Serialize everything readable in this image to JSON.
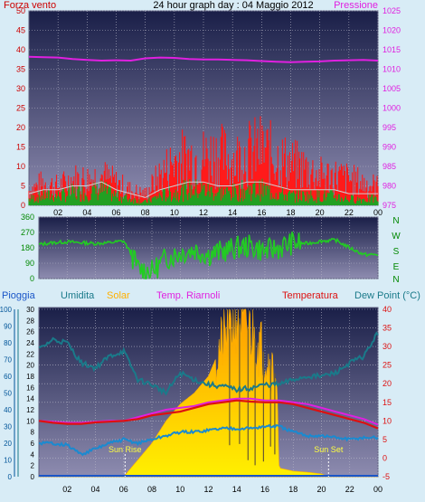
{
  "title": "24 hour graph day : 04 Maggio 2012",
  "colors": {
    "background": "#d8ecf6",
    "panel_top": "#1a1f48",
    "panel_bottom": "#8e8cb0",
    "grid": "#b8b8c8",
    "wind_gust": "#ff1a1a",
    "wind_avg": "#22a022",
    "pressure": "#e020e0",
    "direction": "#22cc22",
    "rain": "#1a56c8",
    "humidity": "#1a7a8a",
    "solar": "#ffb000",
    "solar_fill_bottom": "#fff000",
    "temp_riarnoli": "#e020e0",
    "temperature": "#dd1010",
    "dew_point": "#1a8ad0",
    "left_axis_red": "#cc0000",
    "left_axis_green": "#008800",
    "left_axis_blue": "#005599"
  },
  "chart_data": [
    {
      "id": "wind-pressure",
      "type": "line",
      "left_label": "Forza vento",
      "right_label": "Pressione",
      "x_ticks": [
        "02",
        "04",
        "06",
        "08",
        "10",
        "12",
        "14",
        "16",
        "18",
        "20",
        "22",
        "00"
      ],
      "x_range": [
        0,
        24
      ],
      "left_ticks": [
        "50",
        "45",
        "40",
        "35",
        "30",
        "25",
        "20",
        "15",
        "10",
        "5",
        "0"
      ],
      "ylim_left": [
        0,
        50
      ],
      "right_ticks": [
        "1025",
        "1020",
        "1015",
        "1010",
        "1005",
        "1000",
        "995",
        "990",
        "985",
        "980",
        "975"
      ],
      "ylim_right": [
        975,
        1025
      ],
      "grid": true,
      "series": [
        {
          "name": "Pressione",
          "x": [
            0,
            1,
            2,
            3,
            4,
            5,
            6,
            7,
            8,
            9,
            10,
            11,
            12,
            13,
            14,
            15,
            16,
            17,
            18,
            19,
            20,
            21,
            22,
            23,
            24
          ],
          "values": [
            1013.2,
            1013.1,
            1013.0,
            1012.6,
            1012.4,
            1012.2,
            1012.3,
            1012.2,
            1012.8,
            1013.0,
            1012.9,
            1012.6,
            1012.5,
            1012.5,
            1012.4,
            1012.3,
            1012.1,
            1011.9,
            1011.8,
            1011.9,
            1012.0,
            1012.2,
            1012.3,
            1012.4,
            1012.2
          ]
        },
        {
          "name": "wind_gust",
          "x": [
            0,
            1,
            2,
            3,
            4,
            5,
            6,
            7,
            8,
            9,
            10,
            11,
            12,
            13,
            14,
            15,
            16,
            17,
            18,
            19,
            20,
            21,
            22,
            23,
            24
          ],
          "values": [
            4,
            6,
            5,
            7,
            7,
            8,
            6,
            4,
            3,
            8,
            12,
            13,
            13,
            14,
            12,
            14,
            15,
            13,
            11,
            10,
            8,
            8,
            7,
            6,
            5
          ]
        },
        {
          "name": "wind_avg",
          "x": [
            0,
            1,
            2,
            3,
            4,
            5,
            6,
            7,
            8,
            9,
            10,
            11,
            12,
            13,
            14,
            15,
            16,
            17,
            18,
            19,
            20,
            21,
            22,
            23,
            24
          ],
          "values": [
            2,
            3,
            3,
            4,
            4,
            5,
            3,
            2,
            1,
            3,
            4,
            5,
            5,
            4,
            4,
            5,
            5,
            4,
            3,
            3,
            3,
            3,
            2,
            2,
            2
          ]
        }
      ]
    },
    {
      "id": "wind-direction",
      "type": "line",
      "left_ticks": [
        "360",
        "270",
        "180",
        "90",
        "0"
      ],
      "ylim": [
        0,
        360
      ],
      "right_ticks": [
        "N",
        "W",
        "S",
        "E",
        "N"
      ],
      "grid": true,
      "series": [
        {
          "name": "direction",
          "x": [
            0,
            1,
            2,
            3,
            4,
            5,
            6,
            6.5,
            7,
            8,
            9,
            10,
            11,
            12,
            13,
            14,
            15,
            16,
            17,
            18,
            19,
            20,
            21,
            22,
            23,
            24
          ],
          "values": [
            200,
            210,
            215,
            210,
            205,
            210,
            220,
            150,
            60,
            40,
            120,
            150,
            170,
            140,
            160,
            180,
            190,
            160,
            180,
            210,
            205,
            220,
            225,
            180,
            140,
            140
          ]
        }
      ]
    },
    {
      "id": "temp-humidity-solar",
      "type": "line",
      "legend": [
        "Pioggia",
        "Umidita",
        "Solar",
        "Temp. Riarnoli",
        "Temperatura",
        "Dew Point (°C)"
      ],
      "x_ticks": [
        "02",
        "04",
        "06",
        "08",
        "10",
        "12",
        "14",
        "16",
        "18",
        "20",
        "22",
        "00"
      ],
      "x_range": [
        0,
        24
      ],
      "rain_ticks": [
        "100",
        "90",
        "80",
        "70",
        "60",
        "50",
        "40",
        "30",
        "20",
        "10",
        "0"
      ],
      "humidity_ticks": [
        "30",
        "28",
        "26",
        "24",
        "22",
        "20",
        "18",
        "16",
        "14",
        "12",
        "10",
        "8",
        "6",
        "4",
        "2",
        "0"
      ],
      "temp_ticks": [
        "40",
        "35",
        "30",
        "25",
        "20",
        "15",
        "10",
        "5",
        "0",
        "-5"
      ],
      "ylim_temp": [
        -5,
        40
      ],
      "ylim_humidity": [
        0,
        100
      ],
      "ylim_solar": [
        0,
        30
      ],
      "annotations": [
        "Sun Rise",
        "Sun Set"
      ],
      "sunrise_x": 6.1,
      "sunset_x": 20.5,
      "grid": true,
      "series": [
        {
          "name": "Umidita",
          "x": [
            0,
            1,
            2,
            3,
            4,
            5,
            6,
            7,
            8,
            9,
            10,
            11,
            12,
            13,
            14,
            15,
            16,
            17,
            18,
            19,
            20,
            21,
            22,
            23,
            24
          ],
          "values": [
            76,
            82,
            80,
            68,
            65,
            72,
            75,
            58,
            55,
            50,
            62,
            58,
            55,
            54,
            52,
            53,
            55,
            55,
            58,
            60,
            60,
            62,
            68,
            72,
            86
          ]
        },
        {
          "name": "Solar",
          "x": [
            0,
            6,
            7,
            8,
            9,
            10,
            11,
            12,
            13,
            14,
            15,
            16,
            16.8,
            17,
            17.1,
            18,
            19,
            20,
            20.5,
            24
          ],
          "values": [
            0,
            0,
            3,
            6,
            10,
            13,
            15,
            18,
            24,
            29,
            26,
            22,
            18,
            2,
            1.5,
            1,
            0.8,
            0.5,
            0,
            0
          ]
        },
        {
          "name": "Temp. Riarnoli",
          "x": [
            0,
            1,
            2,
            3,
            4,
            5,
            6,
            7,
            8,
            9,
            10,
            11,
            12,
            13,
            14,
            15,
            16,
            17,
            18,
            19,
            20,
            21,
            22,
            23,
            24
          ],
          "values": [
            10,
            9.8,
            9.5,
            9.5,
            9.8,
            10,
            10,
            11,
            12,
            13,
            13.5,
            14,
            15,
            15.5,
            16,
            16,
            15.5,
            15.5,
            15,
            14.5,
            13.5,
            12.5,
            11.5,
            10.5,
            9
          ]
        },
        {
          "name": "Temperatura",
          "x": [
            0,
            1,
            2,
            3,
            4,
            5,
            6,
            7,
            8,
            9,
            10,
            11,
            12,
            13,
            14,
            15,
            16,
            17,
            18,
            19,
            20,
            21,
            22,
            23,
            24
          ],
          "values": [
            10,
            9.5,
            9.2,
            9.2,
            9.6,
            9.8,
            10,
            10.5,
            11.5,
            12,
            12.5,
            13.5,
            14.5,
            15,
            15.5,
            15.2,
            15,
            15,
            14.5,
            13.5,
            12.5,
            11.5,
            10.5,
            9.5,
            8
          ]
        },
        {
          "name": "Dew Point (°C)",
          "x": [
            0,
            1,
            2,
            3,
            4,
            5,
            6,
            7,
            8,
            9,
            10,
            11,
            12,
            13,
            14,
            15,
            16,
            17,
            18,
            19,
            20,
            21,
            22,
            23,
            24
          ],
          "values": [
            4,
            4,
            3.5,
            1,
            2.5,
            4,
            5,
            4,
            5,
            6,
            7,
            7,
            7.5,
            8,
            8,
            8,
            8.5,
            8.5,
            7,
            6,
            6,
            5.5,
            5,
            5.5,
            5.5
          ]
        }
      ]
    }
  ]
}
